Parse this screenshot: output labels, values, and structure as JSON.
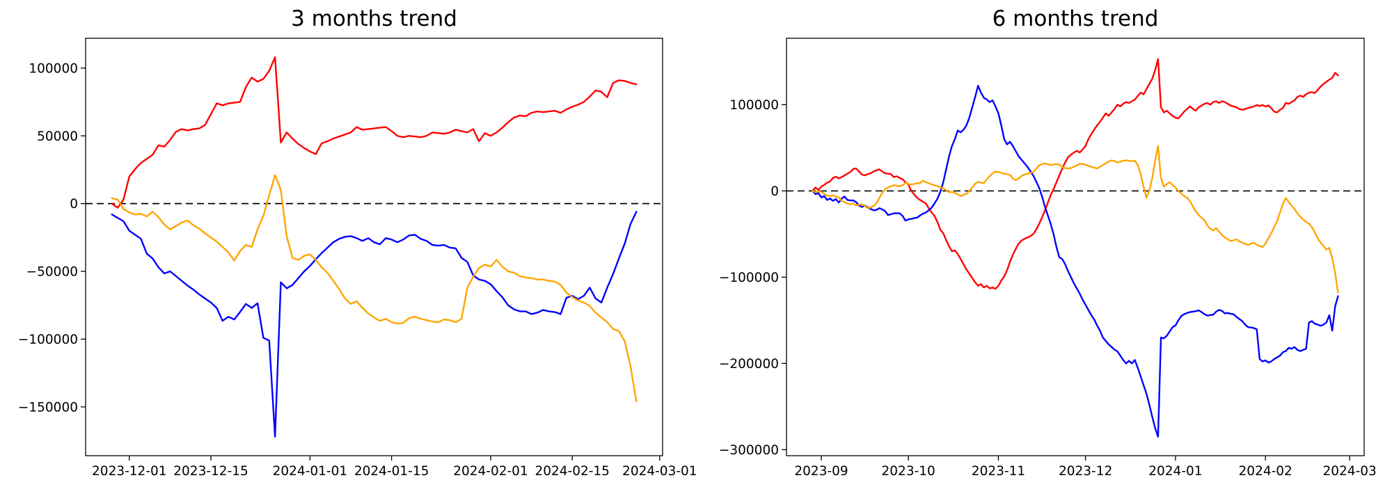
{
  "page": {
    "background": "#ffffff"
  },
  "chart_data": [
    {
      "type": "line",
      "title": "3 months trend",
      "grid": false,
      "legend": "none",
      "x_axis": {
        "unit": "days since 2023-11-28",
        "range": [
          -4.5,
          94.5
        ],
        "tick_days": [
          3,
          17,
          34,
          48,
          65,
          79,
          94
        ],
        "tick_labels": [
          "2023-12-01",
          "2023-12-15",
          "2024-01-01",
          "2024-01-15",
          "2024-02-01",
          "2024-02-15",
          "2024-03-01"
        ]
      },
      "y_axis": {
        "range": [
          -186000,
          122000
        ],
        "ticks": [
          {
            "value": 100000,
            "label": "100000"
          },
          {
            "value": 50000,
            "label": "50000"
          },
          {
            "value": 0,
            "label": "0"
          },
          {
            "value": -50000,
            "label": "−50000"
          },
          {
            "value": -100000,
            "label": "−100000"
          },
          {
            "value": -150000,
            "label": "−150000"
          }
        ]
      },
      "zero_line": {
        "style": "dashed",
        "color": "#000000",
        "y": 0
      },
      "series": [
        {
          "name": "red-series",
          "color": "#ff0000",
          "values": [
            0,
            -3000,
            3000,
            20000,
            25500,
            30000,
            33000,
            36000,
            43000,
            42000,
            47000,
            53000,
            55000,
            54000,
            55000,
            55500,
            58000,
            66000,
            74000,
            72500,
            74000,
            74500,
            75000,
            86000,
            93000,
            90000,
            92000,
            98000,
            108000,
            45000,
            52500,
            48000,
            44000,
            41000,
            38500,
            36500,
            44500,
            46000,
            48000,
            49500,
            51000,
            52500,
            56500,
            54500,
            55000,
            55500,
            56000,
            56500,
            53500,
            50000,
            49000,
            50000,
            49500,
            49000,
            50000,
            52500,
            52000,
            51500,
            52500,
            54500,
            53500,
            52500,
            55000,
            46000,
            52000,
            50000,
            52500,
            56000,
            60000,
            63500,
            65000,
            64500,
            67000,
            68000,
            67500,
            68000,
            68500,
            67000,
            69500,
            71500,
            73000,
            75000,
            79000,
            83500,
            82500,
            78500,
            89000,
            91000,
            90500,
            89000,
            88000
          ]
        },
        {
          "name": "blue-series",
          "color": "#0000ff",
          "values": [
            -8000,
            -10500,
            -13000,
            -20000,
            -23000,
            -26000,
            -37000,
            -40500,
            -47000,
            -51500,
            -50000,
            -53500,
            -57000,
            -60500,
            -63500,
            -67000,
            -70000,
            -73000,
            -77000,
            -86500,
            -83500,
            -85500,
            -80000,
            -74000,
            -77000,
            -73500,
            -99000,
            -101000,
            -172000,
            -58000,
            -62500,
            -60000,
            -55000,
            -50000,
            -46000,
            -41000,
            -36500,
            -32500,
            -28500,
            -26000,
            -24500,
            -24000,
            -25500,
            -27500,
            -25500,
            -28500,
            -30000,
            -25500,
            -26500,
            -28500,
            -26500,
            -23500,
            -23000,
            -26000,
            -27500,
            -30500,
            -31000,
            -30500,
            -32500,
            -33000,
            -40000,
            -43000,
            -53000,
            -56000,
            -57000,
            -59500,
            -64500,
            -69000,
            -75000,
            -78000,
            -79500,
            -79500,
            -81500,
            -80500,
            -78500,
            -79500,
            -80000,
            -81500,
            -69500,
            -68000,
            -70500,
            -68000,
            -62000,
            -70000,
            -73000,
            -62000,
            -52000,
            -40500,
            -29500,
            -15000,
            -6000
          ]
        },
        {
          "name": "orange-series",
          "color": "#ffa500",
          "values": [
            4000,
            3000,
            -4000,
            -6500,
            -8000,
            -7500,
            -9500,
            -6000,
            -10000,
            -15500,
            -19000,
            -16500,
            -14000,
            -12500,
            -16000,
            -18500,
            -22000,
            -25000,
            -28000,
            -32000,
            -36000,
            -42000,
            -35000,
            -30500,
            -32000,
            -19000,
            -9000,
            6000,
            21000,
            10000,
            -24000,
            -40000,
            -41500,
            -38500,
            -37500,
            -41500,
            -47000,
            -51000,
            -57000,
            -63000,
            -70000,
            -74000,
            -72000,
            -77000,
            -81000,
            -84000,
            -86500,
            -85000,
            -87500,
            -88500,
            -88000,
            -84500,
            -83500,
            -85000,
            -86000,
            -87000,
            -87500,
            -85500,
            -86000,
            -87500,
            -85000,
            -62000,
            -54000,
            -47500,
            -45000,
            -46500,
            -41500,
            -46500,
            -50000,
            -51000,
            -53500,
            -54500,
            -55000,
            -56000,
            -56000,
            -57000,
            -57500,
            -60000,
            -65500,
            -69000,
            -71500,
            -73000,
            -75500,
            -80500,
            -84000,
            -87500,
            -92500,
            -94000,
            -101500,
            -120000,
            -146000
          ]
        }
      ]
    },
    {
      "type": "line",
      "title": "6 months trend",
      "grid": false,
      "legend": "none",
      "x_axis": {
        "unit": "days since 2023-08-29",
        "range": [
          -9,
          190
        ],
        "tick_days": [
          3,
          33,
          64,
          94,
          125,
          156,
          185
        ],
        "tick_labels": [
          "2023-09",
          "2023-10",
          "2023-11",
          "2023-12",
          "2024-01",
          "2024-02",
          "2024-03"
        ]
      },
      "y_axis": {
        "range": [
          -307000,
          177000
        ],
        "ticks": [
          {
            "value": 100000,
            "label": "100000"
          },
          {
            "value": 0,
            "label": "0"
          },
          {
            "value": -100000,
            "label": "−100000"
          },
          {
            "value": -200000,
            "label": "−200000"
          },
          {
            "value": -300000,
            "label": "−300000"
          }
        ]
      },
      "zero_line": {
        "style": "dashed",
        "color": "#000000",
        "y": 0
      },
      "series": [
        {
          "name": "red-series",
          "color": "#ff0000",
          "values": [
            0,
            4000,
            1000,
            5000,
            7000,
            9500,
            11000,
            15000,
            16500,
            14500,
            16000,
            18000,
            20000,
            22000,
            25500,
            26000,
            22500,
            19000,
            18000,
            19500,
            20500,
            22500,
            24000,
            25000,
            22500,
            20500,
            20000,
            19500,
            16000,
            17000,
            15000,
            13500,
            10000,
            7500,
            0,
            -4000,
            -8000,
            -10500,
            -12500,
            -14500,
            -20000,
            -25000,
            -29000,
            -36000,
            -45000,
            -49000,
            -57000,
            -64000,
            -70000,
            -69000,
            -73000,
            -79000,
            -85000,
            -91000,
            -96000,
            -101000,
            -106000,
            -110000,
            -108000,
            -112000,
            -110000,
            -113000,
            -112000,
            -113500,
            -110000,
            -104000,
            -99000,
            -92000,
            -82000,
            -74000,
            -67000,
            -61000,
            -57500,
            -55500,
            -54000,
            -52500,
            -50000,
            -45000,
            -38500,
            -31000,
            -23000,
            -14000,
            -5000,
            2000,
            10000,
            18000,
            26000,
            33000,
            39000,
            42000,
            44500,
            46500,
            44500,
            48000,
            52000,
            60000,
            66000,
            71000,
            76000,
            80000,
            85000,
            90000,
            87000,
            91000,
            95000,
            100000,
            98000,
            101000,
            103000,
            102000,
            104000,
            106000,
            110000,
            114000,
            112000,
            118000,
            124000,
            130000,
            140000,
            153000,
            97000,
            91000,
            93000,
            90000,
            87000,
            85000,
            84000,
            88000,
            92000,
            95000,
            98000,
            95000,
            93000,
            97000,
            99000,
            101000,
            102000,
            100000,
            103000,
            104000,
            102000,
            104000,
            103000,
            101000,
            99000,
            98000,
            97000,
            95000,
            94000,
            95000,
            96000,
            97000,
            98000,
            99500,
            98500,
            99500,
            98000,
            99000,
            96000,
            92000,
            91000,
            94000,
            96000,
            102000,
            101000,
            103000,
            105000,
            109000,
            110500,
            109000,
            112000,
            114000,
            114500,
            113500,
            117000,
            121000,
            124000,
            126500,
            129000,
            131000,
            137000,
            134000
          ]
        },
        {
          "name": "blue-series",
          "color": "#0000ff",
          "values": [
            0,
            -3700,
            -2500,
            -7500,
            -6000,
            -10500,
            -8800,
            -11500,
            -9500,
            -13500,
            -9000,
            -6500,
            -10500,
            -11000,
            -11000,
            -13000,
            -17000,
            -18500,
            -17000,
            -19000,
            -21000,
            -22500,
            -22000,
            -20000,
            -21500,
            -23500,
            -28000,
            -27000,
            -26000,
            -25800,
            -26000,
            -29000,
            -34500,
            -33000,
            -32500,
            -31500,
            -31000,
            -28500,
            -26500,
            -25000,
            -22500,
            -19500,
            -14500,
            -9000,
            -1000,
            10000,
            25000,
            40000,
            52000,
            60000,
            70000,
            68000,
            71000,
            76000,
            85000,
            97000,
            109000,
            122000,
            114000,
            108000,
            106000,
            103000,
            105000,
            98000,
            90000,
            76000,
            60000,
            54000,
            57000,
            52000,
            46000,
            40000,
            36000,
            32000,
            28000,
            23000,
            18000,
            11000,
            4000,
            -6000,
            -18000,
            -28000,
            -38000,
            -50000,
            -65000,
            -77000,
            -79000,
            -85000,
            -93000,
            -100000,
            -107000,
            -113000,
            -119000,
            -126000,
            -132000,
            -138000,
            -144000,
            -149000,
            -156000,
            -162000,
            -170000,
            -174000,
            -178000,
            -181000,
            -184000,
            -186000,
            -191000,
            -196000,
            -200000,
            -197000,
            -200000,
            -196000,
            -205000,
            -215000,
            -225000,
            -235000,
            -248000,
            -262000,
            -275000,
            -285000,
            -170000,
            -171000,
            -168000,
            -163000,
            -158000,
            -156000,
            -150000,
            -145000,
            -143000,
            -141500,
            -140500,
            -140000,
            -139500,
            -138500,
            -140500,
            -143000,
            -144500,
            -144000,
            -143500,
            -140000,
            -138000,
            -139000,
            -142000,
            -141500,
            -142500,
            -143000,
            -146000,
            -148500,
            -151000,
            -155000,
            -158000,
            -158300,
            -159000,
            -160500,
            -195000,
            -197700,
            -196400,
            -199000,
            -197700,
            -195000,
            -193000,
            -191000,
            -187000,
            -185700,
            -182000,
            -183000,
            -181000,
            -184300,
            -185700,
            -184300,
            -183000,
            -152500,
            -151000,
            -154000,
            -155000,
            -156400,
            -155000,
            -152500,
            -144000,
            -162000,
            -134000,
            -122000
          ]
        },
        {
          "name": "orange-series",
          "color": "#ffa500",
          "values": [
            0,
            -1500,
            -500,
            -1000,
            -3500,
            -5500,
            -6000,
            -5000,
            -6500,
            -7500,
            -11500,
            -13000,
            -14500,
            -15500,
            -14500,
            -17000,
            -16000,
            -15500,
            -17500,
            -20000,
            -19000,
            -17500,
            -14500,
            -8000,
            -2500,
            2000,
            4000,
            5500,
            6500,
            6000,
            5500,
            6500,
            9500,
            8000,
            7500,
            8000,
            9000,
            9000,
            12000,
            10000,
            9000,
            7500,
            6500,
            5500,
            4000,
            3000,
            1000,
            -1500,
            -1000,
            -2500,
            -4000,
            -6000,
            -4500,
            -3500,
            0,
            4000,
            8500,
            10500,
            9500,
            9000,
            13500,
            17000,
            20500,
            22500,
            22000,
            21000,
            20000,
            19500,
            18500,
            14500,
            12500,
            14500,
            17500,
            19000,
            20000,
            20500,
            22000,
            25500,
            29500,
            31000,
            32000,
            31000,
            30000,
            30500,
            31000,
            30500,
            28000,
            26500,
            26000,
            26500,
            28000,
            29500,
            31500,
            31000,
            30500,
            29000,
            28000,
            27000,
            26000,
            28000,
            30000,
            32000,
            34000,
            35500,
            34500,
            33000,
            34000,
            35000,
            35500,
            35000,
            34500,
            35000,
            30000,
            20000,
            5000,
            -8000,
            0,
            15000,
            35000,
            52000,
            15000,
            5000,
            8000,
            10000,
            7000,
            4000,
            0,
            -3000,
            -6000,
            -8000,
            -12000,
            -18000,
            -24000,
            -28000,
            -31000,
            -34000,
            -40000,
            -44000,
            -46000,
            -43000,
            -47000,
            -51000,
            -54000,
            -56000,
            -58000,
            -57500,
            -56000,
            -58500,
            -60000,
            -61500,
            -62500,
            -61000,
            -60000,
            -62500,
            -64000,
            -65000,
            -61000,
            -55000,
            -49000,
            -42000,
            -35000,
            -25000,
            -15000,
            -8000,
            -13000,
            -17000,
            -21000,
            -26000,
            -30000,
            -33000,
            -36000,
            -38000,
            -42000,
            -48000,
            -55000,
            -60000,
            -64000,
            -68000,
            -66000,
            -78000,
            -95000,
            -118000
          ]
        }
      ]
    }
  ]
}
